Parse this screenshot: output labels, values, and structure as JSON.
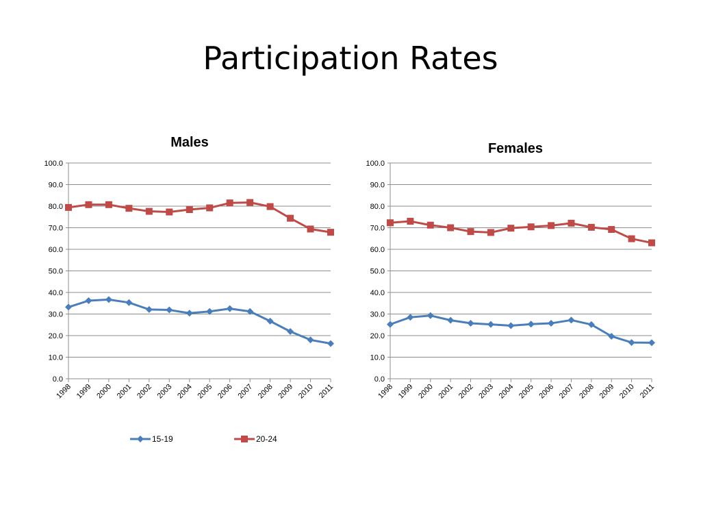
{
  "slide": {
    "title": "Participation Rates"
  },
  "chart_data": [
    {
      "type": "line",
      "title": "Males",
      "categories": [
        "1998",
        "1999",
        "2000",
        "2001",
        "2002",
        "2003",
        "2004",
        "2005",
        "2006",
        "2007",
        "2008",
        "2009",
        "2010",
        "2011"
      ],
      "y_ticks": [
        "0.0",
        "10.0",
        "20.0",
        "30.0",
        "40.0",
        "50.0",
        "60.0",
        "70.0",
        "80.0",
        "90.0",
        "100.0"
      ],
      "ylim": [
        0,
        100
      ],
      "grid": true,
      "legend_position": "bottom",
      "series": [
        {
          "name": "15-19",
          "color": "#4a7ebb",
          "marker": "diamond",
          "values": [
            33.2,
            36.2,
            36.7,
            35.3,
            32.1,
            31.9,
            30.4,
            31.2,
            32.5,
            31.2,
            26.7,
            21.9,
            18.0,
            16.3
          ]
        },
        {
          "name": "20-24",
          "color": "#be4b48",
          "marker": "square",
          "values": [
            79.4,
            80.7,
            80.7,
            79.0,
            77.6,
            77.3,
            78.4,
            79.2,
            81.5,
            81.7,
            79.8,
            74.4,
            69.4,
            67.9
          ]
        }
      ]
    },
    {
      "type": "line",
      "title": "Females",
      "categories": [
        "1998",
        "1999",
        "2000",
        "2001",
        "2002",
        "2003",
        "2004",
        "2005",
        "2006",
        "2007",
        "2008",
        "2009",
        "2010",
        "2011"
      ],
      "y_ticks": [
        "0.0",
        "10.0",
        "20.0",
        "30.0",
        "40.0",
        "50.0",
        "60.0",
        "70.0",
        "80.0",
        "90.0",
        "100.0"
      ],
      "ylim": [
        0,
        100
      ],
      "grid": true,
      "series": [
        {
          "name": "15-19",
          "color": "#4a7ebb",
          "marker": "diamond",
          "values": [
            25.2,
            28.5,
            29.3,
            27.1,
            25.7,
            25.2,
            24.6,
            25.3,
            25.7,
            27.2,
            25.1,
            19.7,
            16.8,
            16.7
          ]
        },
        {
          "name": "20-24",
          "color": "#be4b48",
          "marker": "square",
          "values": [
            72.3,
            73.0,
            71.2,
            70.0,
            68.2,
            67.8,
            69.8,
            70.4,
            71.0,
            72.1,
            70.2,
            69.2,
            64.9,
            63.0
          ]
        }
      ]
    }
  ]
}
